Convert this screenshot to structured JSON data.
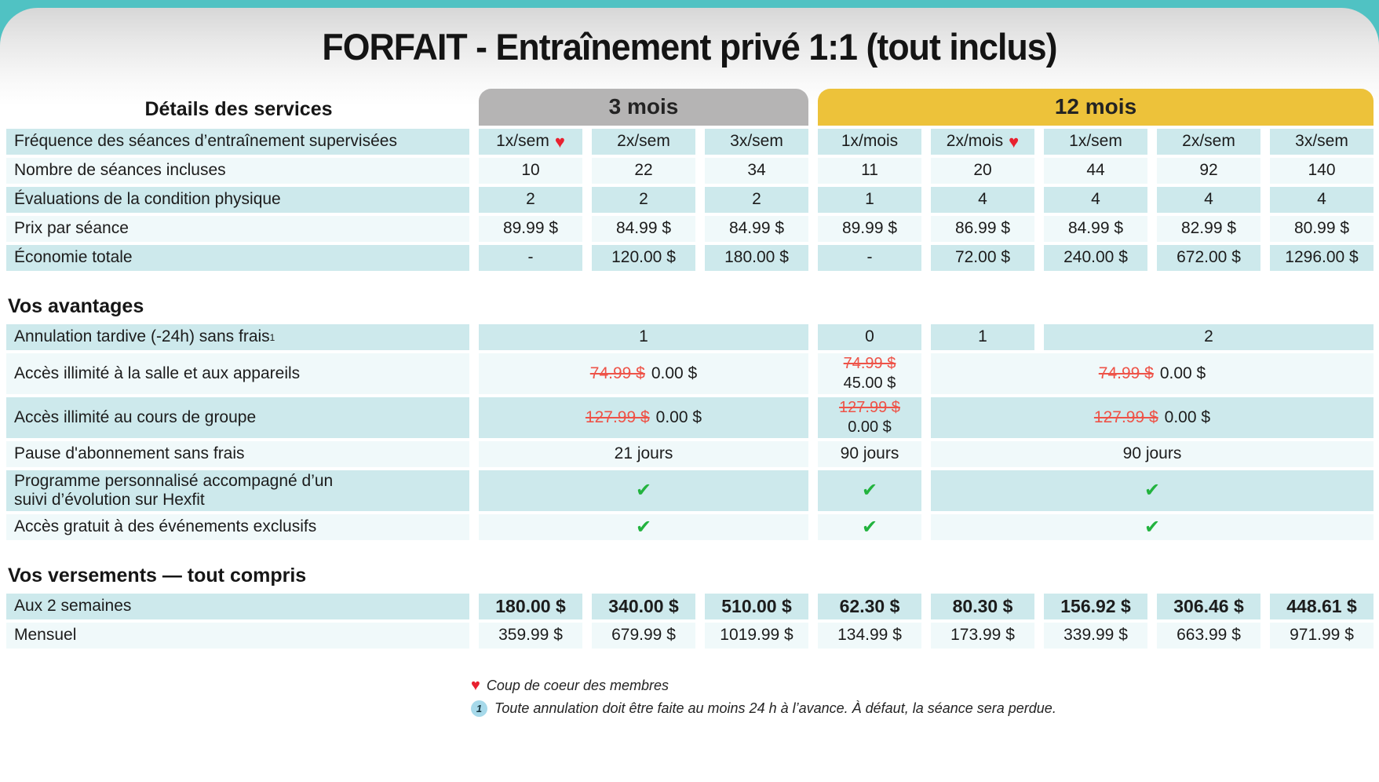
{
  "title": "FORFAIT - Entraînement privé 1:1 (tout inclus)",
  "colors": {
    "banner_teal": "#50c2c3",
    "row_teal": "#cde9ec",
    "row_light": "#f0f9fa",
    "header_gray": "#b5b4b4",
    "header_yellow": "#edc23a",
    "strike_red": "#ee5348",
    "check_green": "#22b33e",
    "heart_red": "#e8212f"
  },
  "table": {
    "services_heading": "Détails des services",
    "groups": [
      {
        "label": "3 mois"
      },
      {
        "label": "12 mois"
      }
    ],
    "frequency_row": {
      "label": "Fréquence des séances d’entraînement supervisées",
      "columns": [
        {
          "label": "1x/sem",
          "favorite": true
        },
        {
          "label": "2x/sem"
        },
        {
          "label": "3x/sem"
        },
        {
          "label": "1x/mois"
        },
        {
          "label": "2x/mois",
          "favorite": true
        },
        {
          "label": "1x/sem"
        },
        {
          "label": "2x/sem"
        },
        {
          "label": "3x/sem"
        }
      ]
    },
    "rows": [
      {
        "label": "Nombre de séances incluses",
        "values": [
          "10",
          "22",
          "34",
          "11",
          "20",
          "44",
          "92",
          "140"
        ]
      },
      {
        "label": "Évaluations de la condition physique",
        "values": [
          "2",
          "2",
          "2",
          "1",
          "4",
          "4",
          "4",
          "4"
        ]
      },
      {
        "label": "Prix par séance",
        "values": [
          "89.99 $",
          "84.99 $",
          "84.99 $",
          "89.99 $",
          "86.99 $",
          "84.99 $",
          "82.99 $",
          "80.99 $"
        ]
      },
      {
        "label": "Économie totale",
        "values": [
          "-",
          "120.00 $",
          "180.00 $",
          "-",
          "72.00 $",
          "240.00 $",
          "672.00 $",
          "1296.00 $"
        ]
      }
    ]
  },
  "advantages": {
    "heading": "Vos avantages",
    "late_cancel": {
      "label": "Annulation tardive (-24h) sans frais",
      "footnote_ref": "1",
      "m3": "1",
      "mois1": "0",
      "mois2": "1",
      "rest": "2"
    },
    "gym_access": {
      "label": "Accès illimité à la salle et aux appareils",
      "old_price": "74.99 $",
      "m3_new": "0.00 $",
      "mois1_new": "45.00 $",
      "m12_new": "0.00 $"
    },
    "group_classes": {
      "label": "Accès illimité au cours de groupe",
      "old_price": "127.99 $",
      "m3_new": "0.00 $",
      "mois1_new": "0.00 $",
      "m12_new": "0.00 $"
    },
    "pause": {
      "label": "Pause d'abonnement sans frais",
      "m3": "21 jours",
      "mois1": "90 jours",
      "m12": "90 jours"
    },
    "program": {
      "label_line1": "Programme personnalisé accompagné d’un",
      "label_line2": "suivi d’évolution sur Hexfit"
    },
    "events": {
      "label": "Accès gratuit à des événements exclusifs"
    }
  },
  "payments": {
    "heading": "Vos versements — tout compris",
    "rows": [
      {
        "label": "Aux 2 semaines",
        "values": [
          "180.00 $",
          "340.00 $",
          "510.00 $",
          "62.30 $",
          "80.30 $",
          "156.92 $",
          "306.46 $",
          "448.61 $"
        ]
      },
      {
        "label": "Mensuel",
        "values": [
          "359.99 $",
          "679.99 $",
          "1019.99 $",
          "134.99 $",
          "173.99 $",
          "339.99 $",
          "663.99 $",
          "971.99 $"
        ]
      }
    ]
  },
  "footnotes": {
    "favorite": "Coup de coeur des membres",
    "cancellation_ref": "1",
    "cancellation": "Toute annulation doit être faite au moins 24 h à l’avance. À défaut, la séance sera perdue."
  }
}
